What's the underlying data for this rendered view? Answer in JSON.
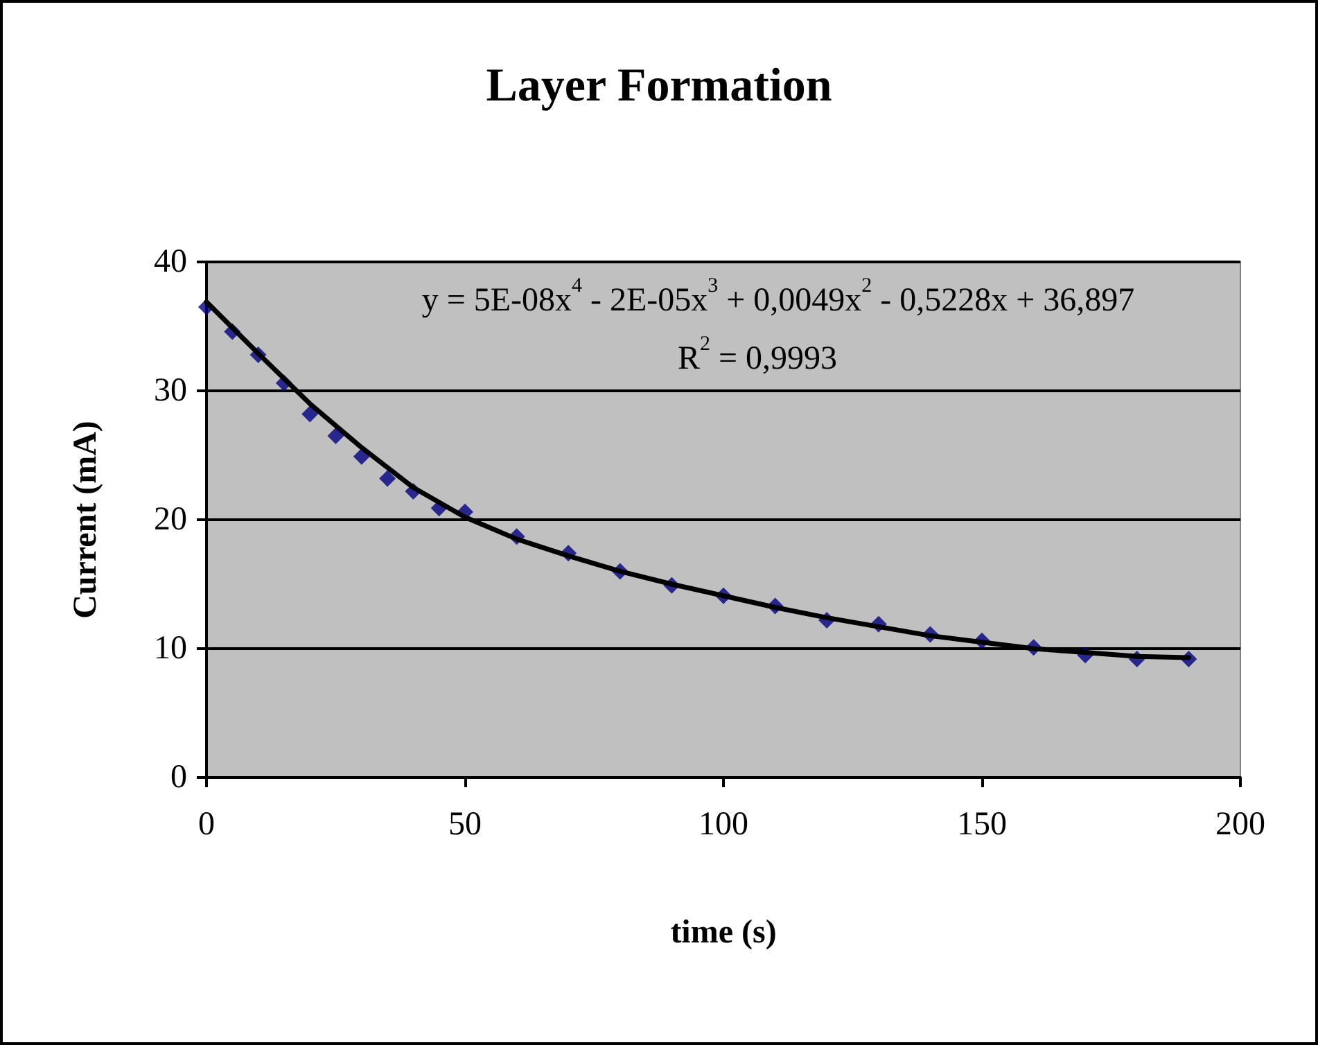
{
  "chart_data": {
    "type": "scatter",
    "title": "Layer Formation",
    "xlabel": "time (s)",
    "ylabel": "Current (mA)",
    "xlim": [
      0,
      200
    ],
    "xticks": [
      0,
      50,
      100,
      150,
      200
    ],
    "ylim": [
      0,
      40
    ],
    "yticks": [
      0,
      10,
      20,
      30,
      40
    ],
    "grid": "y",
    "marker": "diamond",
    "series": [
      {
        "color": "#000080",
        "x": [
          0,
          5,
          10,
          15,
          20,
          25,
          30,
          35,
          40,
          45,
          50,
          60,
          70,
          80,
          90,
          100,
          110,
          120,
          130,
          140,
          150,
          160,
          170,
          180,
          190
        ],
        "values": [
          36.5,
          34.6,
          32.8,
          30.6,
          28.2,
          26.5,
          24.9,
          23.2,
          22.2,
          20.9,
          20.6,
          18.7,
          17.4,
          16.0,
          14.9,
          14.1,
          13.3,
          12.2,
          11.9,
          11.1,
          10.6,
          10.1,
          9.5,
          9.2,
          9.2
        ]
      },
      {
        "type": "line",
        "color": "#000000",
        "line_style": "solid",
        "marker": "none",
        "x": [
          0,
          10,
          20,
          30,
          40,
          50,
          60,
          70,
          80,
          90,
          100,
          110,
          120,
          130,
          140,
          150,
          160,
          170,
          180,
          190
        ],
        "values": [
          36.9,
          32.9,
          29.0,
          25.6,
          22.5,
          20.2,
          18.5,
          17.2,
          16.0,
          15.0,
          14.1,
          13.2,
          12.4,
          11.7,
          11.0,
          10.5,
          10.0,
          9.7,
          9.4,
          9.3
        ]
      }
    ],
    "annotations": [
      "y = 5E-08x$^{4}$ - 2E-05x$^{3}$ + 0,0049x$^{2}$ - 0,5228x + 36,897",
      "R$^{2}$ = 0,9993"
    ]
  }
}
